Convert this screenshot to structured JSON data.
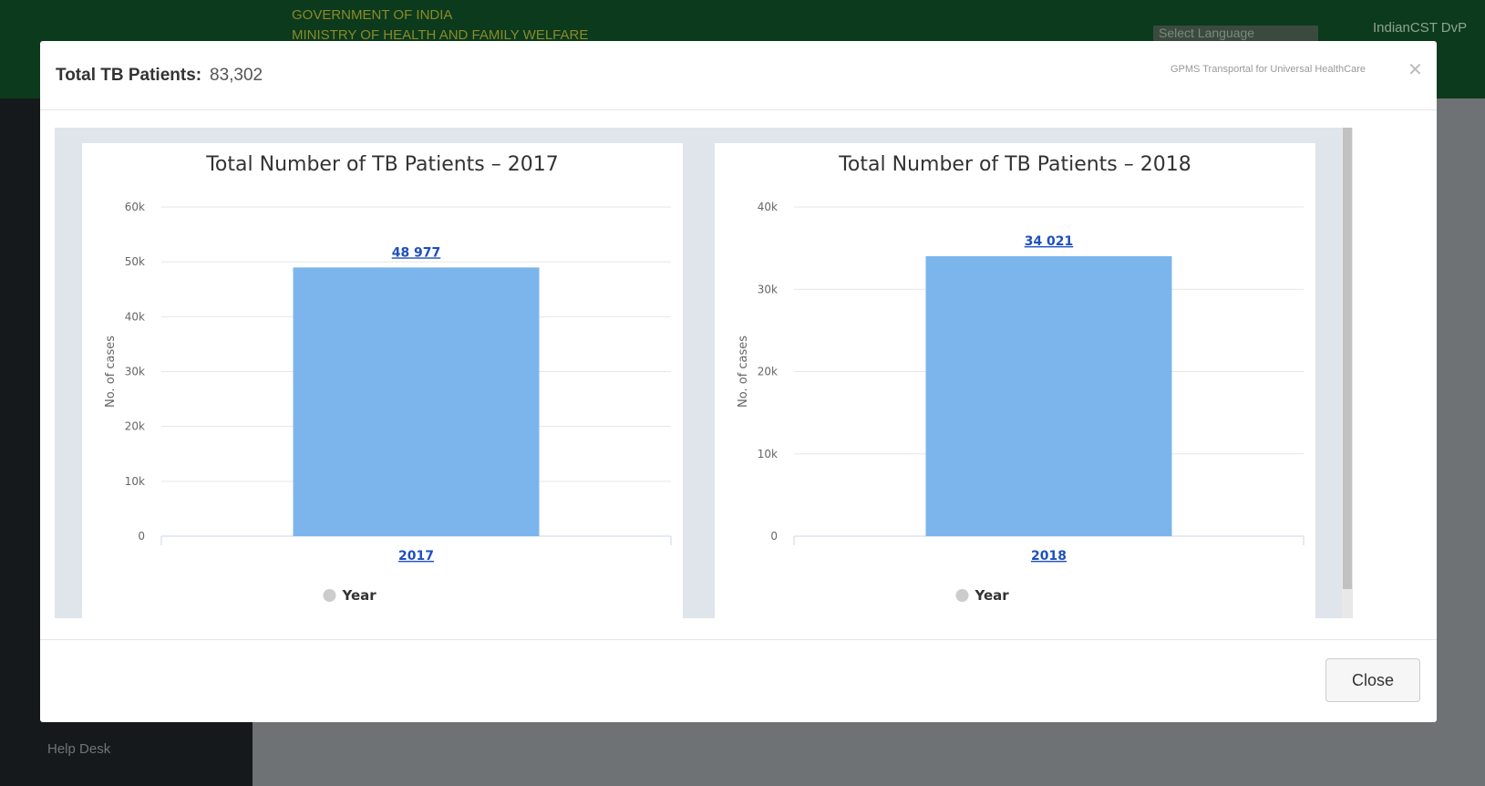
{
  "header": {
    "line1": "GOVERNMENT OF INDIA",
    "line2": "MINISTRY OF HEALTH AND FAMILY WELFARE",
    "language": "Select Language",
    "user": "IndianCST DvP"
  },
  "sidebar": {
    "help": "Help Desk"
  },
  "modal": {
    "title_label": "Total TB Patients:",
    "title_value": "83,302",
    "brand": "GPMS Transportal for Universal HealthCare",
    "close": "Close"
  },
  "chart_data": [
    {
      "type": "bar",
      "title": "Total Number of TB Patients – 2017",
      "y_label": "No. of cases",
      "categories": [
        "2017"
      ],
      "series": [
        {
          "name": "Year",
          "color": "#7cb5ec",
          "values": [
            48977
          ],
          "value_labels": [
            "48 977"
          ]
        }
      ],
      "legend_color": "#cccccc",
      "ylim": [
        0,
        60000
      ],
      "yticks": [
        0,
        {
          "value": 10000,
          "label": "10k"
        },
        {
          "value": 20000,
          "label": "20k"
        },
        {
          "value": 30000,
          "label": "30k"
        },
        {
          "value": 40000,
          "label": "40k"
        },
        {
          "value": 50000,
          "label": "50k"
        },
        {
          "value": 60000,
          "label": "60k"
        }
      ],
      "grid": true
    },
    {
      "type": "bar",
      "title": "Total Number of TB Patients – 2018",
      "y_label": "No. of cases",
      "categories": [
        "2018"
      ],
      "series": [
        {
          "name": "Year",
          "color": "#7cb5ec",
          "values": [
            34021
          ],
          "value_labels": [
            "34 021"
          ]
        }
      ],
      "legend_color": "#cccccc",
      "ylim": [
        0,
        40000
      ],
      "yticks": [
        0,
        {
          "value": 10000,
          "label": "10k"
        },
        {
          "value": 20000,
          "label": "20k"
        },
        {
          "value": 30000,
          "label": "30k"
        },
        {
          "value": 40000,
          "label": "40k"
        }
      ],
      "grid": true
    }
  ]
}
